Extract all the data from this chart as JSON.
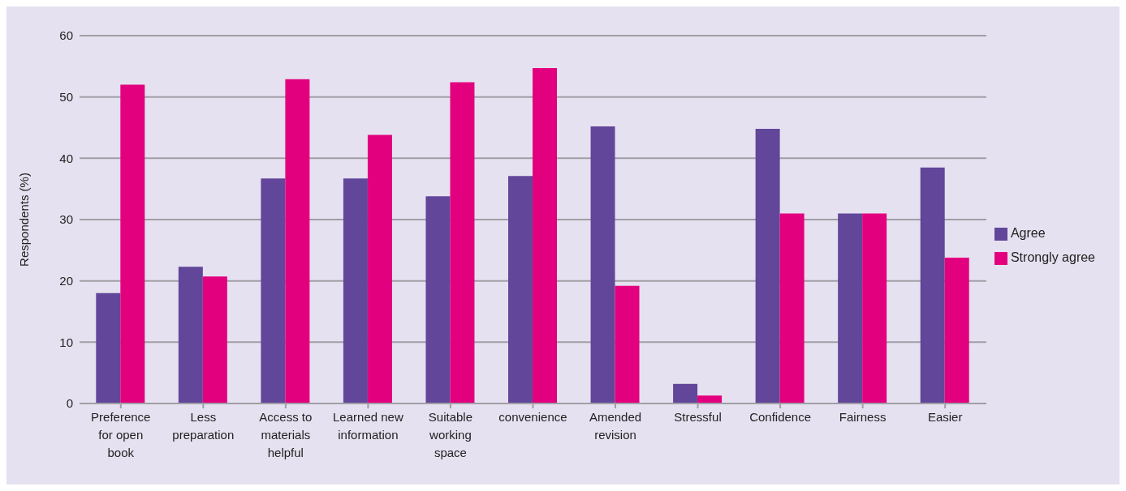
{
  "chart_data": {
    "type": "bar",
    "ylabel": "Respondents (%)",
    "categories": [
      "Preference for open book",
      "Less preparation",
      "Access to materials helpful",
      "Learned new information",
      "Suitable working space",
      "convenience",
      "Amended revision",
      "Stressful",
      "Confidence",
      "Fairness",
      "Easier"
    ],
    "series": [
      {
        "name": "Agree",
        "color": "#62469a",
        "values": [
          18,
          22.3,
          36.7,
          36.7,
          33.8,
          37.1,
          45.2,
          3.2,
          44.8,
          31,
          38.5
        ]
      },
      {
        "name": "Strongly agree",
        "color": "#e3007e",
        "values": [
          52,
          20.7,
          52.9,
          43.8,
          52.4,
          54.7,
          19.2,
          1.3,
          31,
          31,
          23.8
        ]
      }
    ],
    "ylim": [
      0,
      60
    ],
    "yticks": [
      0,
      10,
      20,
      30,
      40,
      50,
      60
    ],
    "grid": "y",
    "legend": "right"
  }
}
